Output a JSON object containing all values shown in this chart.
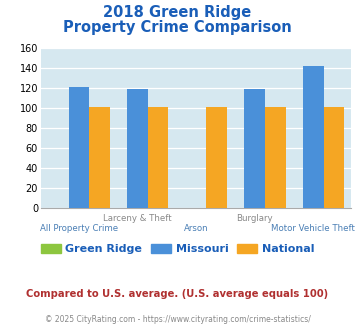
{
  "title_line1": "2018 Green Ridge",
  "title_line2": "Property Crime Comparison",
  "groups": [
    {
      "label_top": "",
      "label_bot": "All Property Crime",
      "green_ridge": 0,
      "missouri": 121,
      "national": 101
    },
    {
      "label_top": "Larceny & Theft",
      "label_bot": "Arson",
      "green_ridge": 0,
      "missouri": 119,
      "national": 101
    },
    {
      "label_top": "",
      "label_bot": "",
      "green_ridge": 0,
      "missouri": 0,
      "national": 101
    },
    {
      "label_top": "Burglary",
      "label_bot": "",
      "green_ridge": 0,
      "missouri": 119,
      "national": 101
    },
    {
      "label_top": "",
      "label_bot": "Motor Vehicle Theft",
      "green_ridge": 0,
      "missouri": 142,
      "national": 101
    }
  ],
  "color_green": "#8dc63f",
  "color_blue": "#4a90d9",
  "color_orange": "#f5a623",
  "ylim": [
    0,
    160
  ],
  "yticks": [
    0,
    20,
    40,
    60,
    80,
    100,
    120,
    140,
    160
  ],
  "background_color": "#d6e8f0",
  "legend_label_green": "Green Ridge",
  "legend_label_blue": "Missouri",
  "legend_label_orange": "National",
  "footnote1": "Compared to U.S. average. (U.S. average equals 100)",
  "footnote2": "© 2025 CityRating.com - https://www.cityrating.com/crime-statistics/",
  "title_color": "#1a5eb8",
  "footnote1_color": "#b03030",
  "footnote2_color": "#888888",
  "label_top_color": "#888888",
  "label_bot_color": "#4a7fb5"
}
